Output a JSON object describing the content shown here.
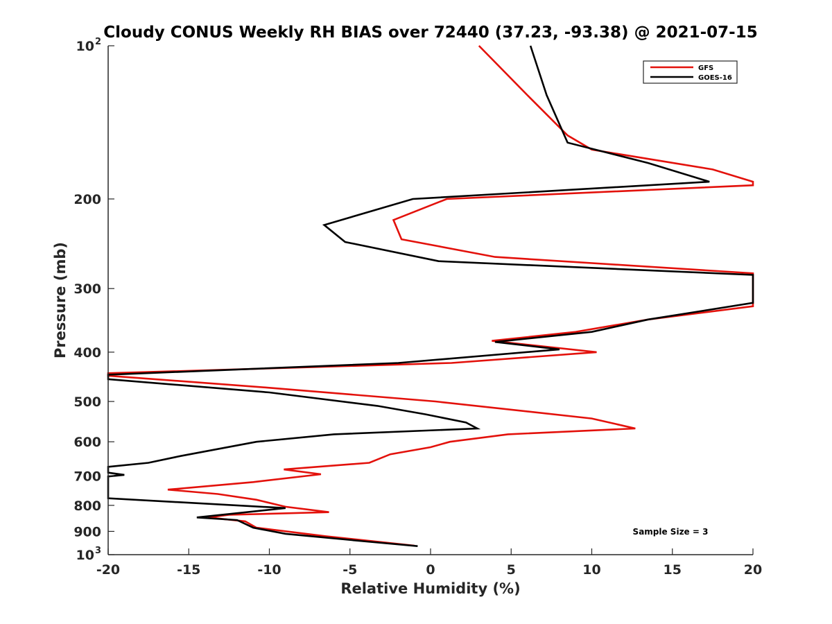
{
  "chart_data": {
    "type": "line",
    "title": "Cloudy CONUS Weekly RH BIAS over 72440 (37.23, -93.38) @ 2021-07-15",
    "xlabel": "Relative Humidity (%)",
    "ylabel": "Pressure (mb)",
    "xlim": [
      -20,
      20
    ],
    "ylim": [
      100,
      1000
    ],
    "y_scale": "log",
    "y_reversed": true,
    "grid": false,
    "legend_position": "top-right",
    "annotation": "Sample Size = 3",
    "x_ticks": [
      "-20",
      "-15",
      "-10",
      "-5",
      "0",
      "5",
      "10",
      "15",
      "20"
    ],
    "y_ticks": [
      {
        "value": 100,
        "label": "10",
        "sup": "2"
      },
      {
        "value": 200,
        "label": "200",
        "sup": ""
      },
      {
        "value": 300,
        "label": "300",
        "sup": ""
      },
      {
        "value": 400,
        "label": "400",
        "sup": ""
      },
      {
        "value": 500,
        "label": "500",
        "sup": ""
      },
      {
        "value": 600,
        "label": "600",
        "sup": ""
      },
      {
        "value": 700,
        "label": "700",
        "sup": ""
      },
      {
        "value": 800,
        "label": "800",
        "sup": ""
      },
      {
        "value": 900,
        "label": "900",
        "sup": ""
      },
      {
        "value": 1000,
        "label": "10",
        "sup": "3"
      }
    ],
    "series": [
      {
        "name": "GFS",
        "color": "#e3110b",
        "points": [
          [
            3,
            100
          ],
          [
            6,
            125
          ],
          [
            8.5,
            150
          ],
          [
            10,
            160
          ],
          [
            17.5,
            175
          ],
          [
            20,
            185
          ],
          [
            20,
            188
          ],
          [
            1,
            200
          ],
          [
            -2.3,
            220
          ],
          [
            -1.8,
            240
          ],
          [
            4,
            260
          ],
          [
            20,
            280
          ],
          [
            20,
            325
          ],
          [
            13.5,
            345
          ],
          [
            9,
            365
          ],
          [
            3.8,
            380
          ],
          [
            10.3,
            400
          ],
          [
            1.3,
            420
          ],
          [
            -20,
            440
          ],
          [
            -20,
            445
          ],
          [
            -10,
            470
          ],
          [
            0.3,
            500
          ],
          [
            10,
            540
          ],
          [
            12.7,
            565
          ],
          [
            4.8,
            580
          ],
          [
            1.2,
            600
          ],
          [
            0,
            615
          ],
          [
            -2.5,
            635
          ],
          [
            -3.8,
            660
          ],
          [
            -9.1,
            680
          ],
          [
            -6.8,
            695
          ],
          [
            -11,
            720
          ],
          [
            -16.3,
            745
          ],
          [
            -13.2,
            760
          ],
          [
            -10.8,
            780
          ],
          [
            -9,
            805
          ],
          [
            -6.3,
            825
          ],
          [
            -12.5,
            835
          ],
          [
            -13.8,
            845
          ],
          [
            -11.5,
            860
          ],
          [
            -10.8,
            885
          ],
          [
            -6.5,
            920
          ],
          [
            -3,
            945
          ],
          [
            -1,
            960
          ]
        ]
      },
      {
        "name": "GOES-16",
        "color": "#000000",
        "points": [
          [
            6.2,
            100
          ],
          [
            7.2,
            125
          ],
          [
            8.5,
            155
          ],
          [
            13.5,
            170
          ],
          [
            17.3,
            185
          ],
          [
            -1.1,
            200
          ],
          [
            -6.6,
            225
          ],
          [
            -5.3,
            243
          ],
          [
            0.5,
            265
          ],
          [
            20,
            282
          ],
          [
            20,
            320
          ],
          [
            13.5,
            345
          ],
          [
            10,
            365
          ],
          [
            4,
            382
          ],
          [
            8,
            395
          ],
          [
            -2,
            420
          ],
          [
            -20,
            443
          ],
          [
            -20,
            452
          ],
          [
            -10,
            480
          ],
          [
            -3.3,
            510
          ],
          [
            -0.3,
            530
          ],
          [
            2.2,
            550
          ],
          [
            2.9,
            565
          ],
          [
            -6,
            580
          ],
          [
            -10.8,
            600
          ],
          [
            -15.5,
            640
          ],
          [
            -17.5,
            660
          ],
          [
            -20,
            672
          ],
          [
            -20,
            690
          ],
          [
            -19,
            697
          ],
          [
            -20,
            702
          ],
          [
            -20,
            775
          ],
          [
            -9,
            810
          ],
          [
            -14.5,
            845
          ],
          [
            -12,
            855
          ],
          [
            -11,
            885
          ],
          [
            -9,
            910
          ],
          [
            -3.5,
            945
          ],
          [
            -0.8,
            962
          ]
        ]
      }
    ]
  }
}
